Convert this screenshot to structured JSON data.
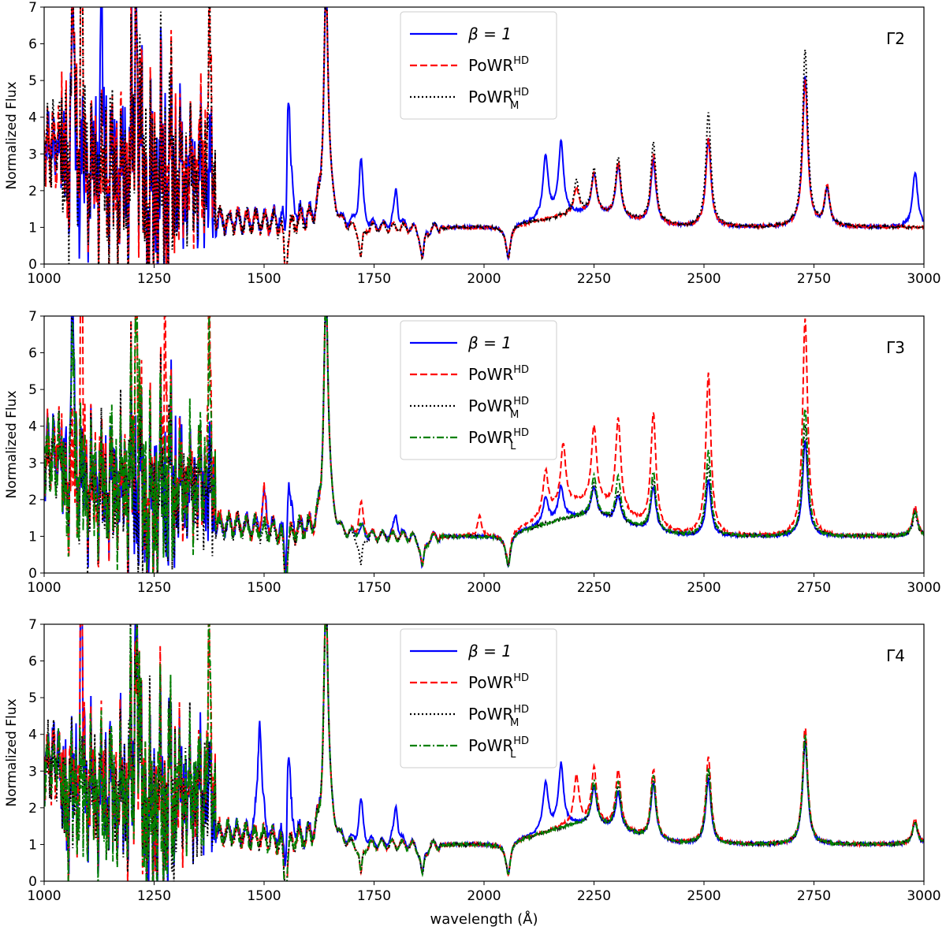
{
  "chart_data": [
    {
      "type": "line",
      "panel_label": "Γ2",
      "ylabel": "Normalized Flux",
      "xlabel": "",
      "xlim": [
        1000,
        3000
      ],
      "ylim": [
        0,
        7
      ],
      "xticks": [
        "1000",
        "1250",
        "1500",
        "1750",
        "2000",
        "2250",
        "2500",
        "2750",
        "3000"
      ],
      "yticks": [
        "0",
        "1",
        "2",
        "3",
        "4",
        "5",
        "6",
        "7"
      ],
      "legend_position": "upper-center",
      "series": [
        {
          "name": "β = 1",
          "color": "#0000ff",
          "style": "solid"
        },
        {
          "name": "PoWR",
          "sup": "HD",
          "color": "#ff0000",
          "style": "dashed"
        },
        {
          "name": "PoWR",
          "sup": "HD",
          "sub": "M",
          "color": "#000000",
          "style": "dotted"
        }
      ],
      "peaks": {
        "b1": [
          [
            1065,
            6.9
          ],
          [
            1130,
            5.9
          ],
          [
            1210,
            7
          ],
          [
            1555,
            5.0
          ],
          [
            1640,
            7
          ],
          [
            1720,
            3.7
          ],
          [
            1800,
            2.0
          ],
          [
            2140,
            2.7
          ],
          [
            2175,
            3.0
          ],
          [
            2250,
            2.1
          ],
          [
            2305,
            2.4
          ],
          [
            2385,
            2.7
          ],
          [
            2510,
            3.4
          ],
          [
            2730,
            5.1
          ],
          [
            2780,
            2.0
          ],
          [
            2980,
            2.5
          ]
        ],
        "hd": [
          [
            1065,
            7
          ],
          [
            1085,
            7
          ],
          [
            1210,
            7
          ],
          [
            1375,
            5.6
          ],
          [
            1640,
            7
          ],
          [
            2210,
            1.7
          ],
          [
            2250,
            2.1
          ],
          [
            2305,
            2.5
          ],
          [
            2385,
            2.9
          ],
          [
            2510,
            3.4
          ],
          [
            2730,
            5.0
          ],
          [
            2780,
            2.1
          ]
        ],
        "m": [
          [
            1065,
            7
          ],
          [
            1085,
            7
          ],
          [
            1210,
            7
          ],
          [
            1375,
            5.5
          ],
          [
            1640,
            7
          ],
          [
            2210,
            1.9
          ],
          [
            2250,
            2.2
          ],
          [
            2305,
            2.6
          ],
          [
            2385,
            3.2
          ],
          [
            2510,
            4.1
          ],
          [
            2730,
            5.8
          ],
          [
            2780,
            2.0
          ]
        ]
      }
    },
    {
      "type": "line",
      "panel_label": "Γ3",
      "ylabel": "Normalized Flux",
      "xlabel": "",
      "xlim": [
        1000,
        3000
      ],
      "ylim": [
        0,
        7
      ],
      "xticks": [
        "1000",
        "1250",
        "1500",
        "1750",
        "2000",
        "2250",
        "2500",
        "2750",
        "3000"
      ],
      "yticks": [
        "0",
        "1",
        "2",
        "3",
        "4",
        "5",
        "6",
        "7"
      ],
      "legend_position": "upper-center",
      "series": [
        {
          "name": "β = 1",
          "color": "#0000ff",
          "style": "solid"
        },
        {
          "name": "PoWR",
          "sup": "HD",
          "color": "#ff0000",
          "style": "dashed"
        },
        {
          "name": "PoWR",
          "sup": "HD",
          "sub": "M",
          "color": "#000000",
          "style": "dotted"
        },
        {
          "name": "PoWR",
          "sup": "HD",
          "sub": "L",
          "color": "#008000",
          "style": "dashdot"
        }
      ],
      "peaks": {
        "b1": [
          [
            1065,
            7
          ],
          [
            1500,
            1.9
          ],
          [
            1555,
            2.7
          ],
          [
            1640,
            7
          ],
          [
            1720,
            2.0
          ],
          [
            1800,
            1.6
          ],
          [
            2140,
            1.7
          ],
          [
            2175,
            1.9
          ],
          [
            2250,
            1.8
          ],
          [
            2305,
            1.7
          ],
          [
            2385,
            2.2
          ],
          [
            2510,
            2.5
          ],
          [
            2730,
            3.6
          ],
          [
            2980,
            1.7
          ]
        ],
        "hd": [
          [
            1085,
            7
          ],
          [
            1210,
            7
          ],
          [
            1275,
            7
          ],
          [
            1375,
            6.0
          ],
          [
            1500,
            2.0
          ],
          [
            1640,
            7
          ],
          [
            1720,
            2.7
          ],
          [
            1990,
            1.6
          ],
          [
            2140,
            2.2
          ],
          [
            2180,
            2.7
          ],
          [
            2250,
            3.1
          ],
          [
            2305,
            3.5
          ],
          [
            2385,
            4.1
          ],
          [
            2510,
            5.4
          ],
          [
            2730,
            6.9
          ],
          [
            2980,
            1.8
          ]
        ],
        "m": [
          [
            1065,
            5.5
          ],
          [
            1640,
            7
          ],
          [
            2250,
            1.9
          ],
          [
            2305,
            1.8
          ],
          [
            2385,
            2.4
          ],
          [
            2510,
            2.9
          ],
          [
            2730,
            4.0
          ],
          [
            2980,
            1.6
          ]
        ],
        "l": [
          [
            1065,
            5.5
          ],
          [
            1210,
            7
          ],
          [
            1375,
            4.0
          ],
          [
            1640,
            7
          ],
          [
            1720,
            2.1
          ],
          [
            2250,
            2.1
          ],
          [
            2305,
            2.2
          ],
          [
            2385,
            2.6
          ],
          [
            2510,
            3.3
          ],
          [
            2730,
            4.5
          ],
          [
            2980,
            1.7
          ]
        ]
      }
    },
    {
      "type": "line",
      "panel_label": "Γ4",
      "ylabel": "Normalized Flux",
      "xlabel": "wavelength (Å)",
      "xlim": [
        1000,
        3000
      ],
      "ylim": [
        0,
        7
      ],
      "xticks": [
        "1000",
        "1250",
        "1500",
        "1750",
        "2000",
        "2250",
        "2500",
        "2750",
        "3000"
      ],
      "yticks": [
        "0",
        "1",
        "2",
        "3",
        "4",
        "5",
        "6",
        "7"
      ],
      "legend_position": "upper-center",
      "series": [
        {
          "name": "β = 1",
          "color": "#0000ff",
          "style": "solid"
        },
        {
          "name": "PoWR",
          "sup": "HD",
          "color": "#ff0000",
          "style": "dashed"
        },
        {
          "name": "PoWR",
          "sup": "HD",
          "sub": "M",
          "color": "#000000",
          "style": "dotted"
        },
        {
          "name": "PoWR",
          "sup": "HD",
          "sub": "L",
          "color": "#008000",
          "style": "dashdot"
        }
      ],
      "peaks": {
        "b1": [
          [
            1085,
            6.1
          ],
          [
            1210,
            7
          ],
          [
            1490,
            4.3
          ],
          [
            1555,
            3.7
          ],
          [
            1640,
            7
          ],
          [
            1720,
            3.0
          ],
          [
            1800,
            2.1
          ],
          [
            2140,
            2.3
          ],
          [
            2175,
            2.7
          ],
          [
            2250,
            2.0
          ],
          [
            2305,
            2.0
          ],
          [
            2385,
            2.5
          ],
          [
            2510,
            2.8
          ],
          [
            2730,
            3.8
          ],
          [
            2980,
            1.6
          ]
        ],
        "hd": [
          [
            1085,
            6.2
          ],
          [
            1210,
            7
          ],
          [
            1375,
            5.3
          ],
          [
            1640,
            7
          ],
          [
            2210,
            2.3
          ],
          [
            2250,
            2.5
          ],
          [
            2305,
            2.6
          ],
          [
            2385,
            2.9
          ],
          [
            2510,
            3.4
          ],
          [
            2730,
            4.2
          ],
          [
            2980,
            1.7
          ]
        ],
        "m": [
          [
            1210,
            7
          ],
          [
            1640,
            7
          ],
          [
            2250,
            2.1
          ],
          [
            2305,
            2.2
          ],
          [
            2385,
            2.6
          ],
          [
            2510,
            3.0
          ],
          [
            2730,
            3.9
          ],
          [
            2980,
            1.6
          ]
        ],
        "l": [
          [
            1210,
            7
          ],
          [
            1375,
            5.2
          ],
          [
            1640,
            7
          ],
          [
            2250,
            2.2
          ],
          [
            2305,
            2.3
          ],
          [
            2385,
            2.7
          ],
          [
            2510,
            3.1
          ],
          [
            2730,
            4.0
          ],
          [
            2980,
            1.6
          ]
        ]
      }
    }
  ]
}
